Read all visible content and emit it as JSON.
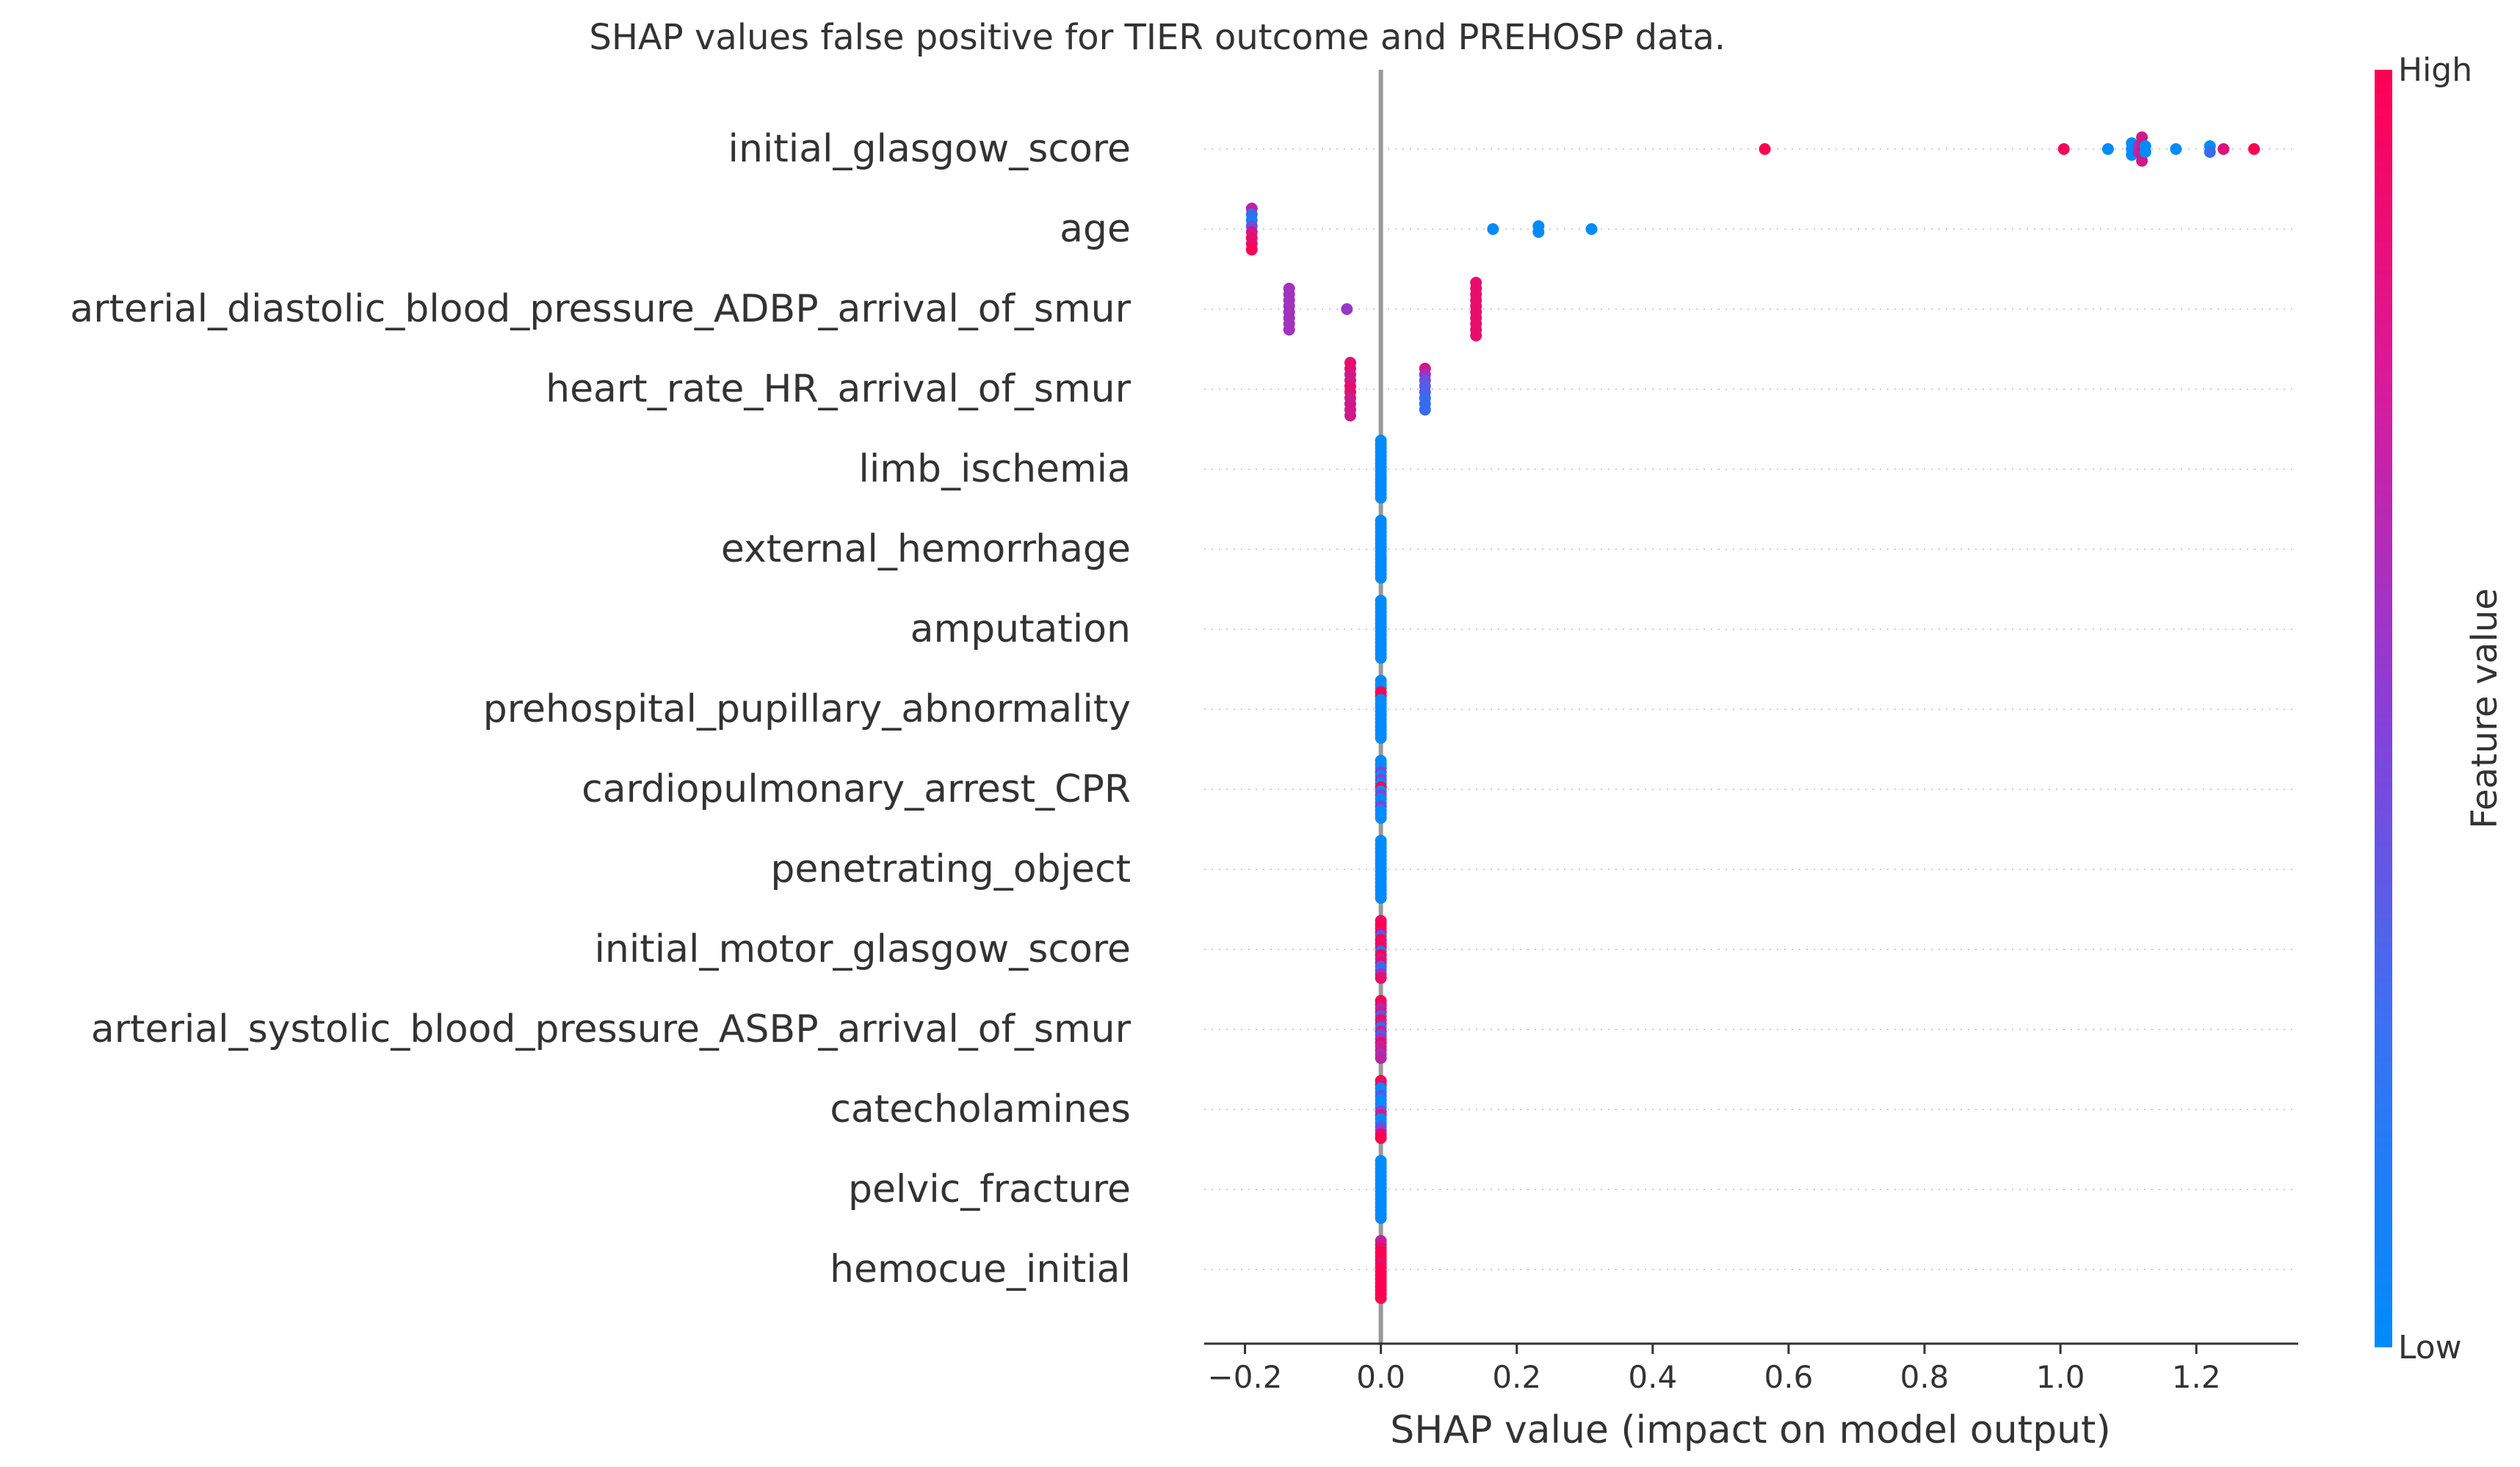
{
  "chart_data": {
    "type": "scatter",
    "title": "SHAP values false positive for TIER outcome and PREHOSP data.",
    "xlabel": "SHAP value (impact on model output)",
    "ylabel": "",
    "xlim": [
      -0.26,
      1.35
    ],
    "xticks": [
      -0.2,
      0.0,
      0.2,
      0.4,
      0.6,
      0.8,
      1.0,
      1.2
    ],
    "xtick_labels": [
      "−0.2",
      "0.0",
      "0.2",
      "0.4",
      "0.6",
      "0.8",
      "1.0",
      "1.2"
    ],
    "grid": false,
    "zero_line": true,
    "colorbar": {
      "label": "Feature value",
      "high_label": "High",
      "low_label": "Low",
      "low_color": "#008bfb",
      "high_color": "#ff0052"
    },
    "features": [
      {
        "name": "initial_glasgow_score",
        "points": [
          {
            "x": 0.565,
            "v": 1.0
          },
          {
            "x": 1.005,
            "v": 1.0
          },
          {
            "x": 1.07,
            "v": 0.0
          },
          {
            "x": 1.105,
            "v": 0.0
          },
          {
            "x": 1.105,
            "v": 0.0
          },
          {
            "x": 1.105,
            "v": 0.0
          },
          {
            "x": 1.115,
            "v": 0.5
          },
          {
            "x": 1.115,
            "v": 0.6
          },
          {
            "x": 1.12,
            "v": 0.8
          },
          {
            "x": 1.12,
            "v": 0.8
          },
          {
            "x": 1.12,
            "v": 0.8
          },
          {
            "x": 1.12,
            "v": 0.8
          },
          {
            "x": 1.12,
            "v": 0.8
          },
          {
            "x": 1.125,
            "v": 0.0
          },
          {
            "x": 1.125,
            "v": 0.0
          },
          {
            "x": 1.17,
            "v": 0.0
          },
          {
            "x": 1.22,
            "v": 0.0
          },
          {
            "x": 1.22,
            "v": 0.2
          },
          {
            "x": 1.24,
            "v": 0.85
          },
          {
            "x": 1.285,
            "v": 1.0
          }
        ]
      },
      {
        "name": "age",
        "points": [
          {
            "x": -0.19,
            "v": 0.7
          },
          {
            "x": -0.19,
            "v": 0.2
          },
          {
            "x": -0.19,
            "v": 0.1
          },
          {
            "x": -0.19,
            "v": 0.4
          },
          {
            "x": -0.19,
            "v": 0.8
          },
          {
            "x": -0.19,
            "v": 0.9
          },
          {
            "x": -0.19,
            "v": 0.9
          },
          {
            "x": -0.19,
            "v": 1.0
          },
          {
            "x": 0.165,
            "v": 0.0
          },
          {
            "x": 0.232,
            "v": 0.0
          },
          {
            "x": 0.232,
            "v": 0.0
          },
          {
            "x": 0.31,
            "v": 0.0
          }
        ]
      },
      {
        "name": "arterial_diastolic_blood_pressure_ADBP_arrival_of_smur",
        "points": [
          {
            "x": -0.135,
            "v": 0.6
          },
          {
            "x": -0.135,
            "v": 0.6
          },
          {
            "x": -0.135,
            "v": 0.6
          },
          {
            "x": -0.135,
            "v": 0.6
          },
          {
            "x": -0.135,
            "v": 0.6
          },
          {
            "x": -0.135,
            "v": 0.6
          },
          {
            "x": -0.135,
            "v": 0.6
          },
          {
            "x": -0.135,
            "v": 0.6
          },
          {
            "x": -0.05,
            "v": 0.55
          },
          {
            "x": 0.14,
            "v": 0.9
          },
          {
            "x": 0.14,
            "v": 0.9
          },
          {
            "x": 0.14,
            "v": 0.9
          },
          {
            "x": 0.14,
            "v": 0.9
          },
          {
            "x": 0.14,
            "v": 0.9
          },
          {
            "x": 0.14,
            "v": 0.9
          },
          {
            "x": 0.14,
            "v": 0.9
          },
          {
            "x": 0.14,
            "v": 0.9
          },
          {
            "x": 0.14,
            "v": 0.9
          },
          {
            "x": 0.14,
            "v": 0.9
          }
        ]
      },
      {
        "name": "heart_rate_HR_arrival_of_smur",
        "points": [
          {
            "x": -0.045,
            "v": 0.9
          },
          {
            "x": -0.045,
            "v": 0.9
          },
          {
            "x": -0.045,
            "v": 0.8
          },
          {
            "x": -0.045,
            "v": 0.8
          },
          {
            "x": -0.045,
            "v": 0.9
          },
          {
            "x": -0.045,
            "v": 0.9
          },
          {
            "x": -0.045,
            "v": 0.8
          },
          {
            "x": -0.045,
            "v": 0.8
          },
          {
            "x": -0.045,
            "v": 0.8
          },
          {
            "x": -0.045,
            "v": 0.8
          },
          {
            "x": 0.065,
            "v": 0.8
          },
          {
            "x": 0.065,
            "v": 0.6
          },
          {
            "x": 0.065,
            "v": 0.4
          },
          {
            "x": 0.065,
            "v": 0.3
          },
          {
            "x": 0.065,
            "v": 0.3
          },
          {
            "x": 0.065,
            "v": 0.2
          },
          {
            "x": 0.065,
            "v": 0.2
          },
          {
            "x": 0.065,
            "v": 0.2
          }
        ]
      },
      {
        "name": "limb_ischemia",
        "column": {
          "x": 0.0,
          "count": 16,
          "values": [
            0
          ]
        }
      },
      {
        "name": "external_hemorrhage",
        "column": {
          "x": 0.0,
          "count": 16,
          "values": [
            0
          ]
        }
      },
      {
        "name": "amputation",
        "column": {
          "x": 0.0,
          "count": 16,
          "values": [
            0
          ]
        }
      },
      {
        "name": "prehospital_pupillary_abnormality",
        "column": {
          "x": 0.0,
          "count": 16,
          "values": [
            0,
            0,
            0,
            1,
            1,
            0,
            0,
            0,
            0,
            0,
            0,
            0,
            0,
            0,
            0,
            0
          ]
        }
      },
      {
        "name": "cardiopulmonary_arrest_CPR",
        "column": {
          "x": 0.0,
          "count": 16,
          "values": [
            0,
            0,
            0,
            0.5,
            0,
            0.5,
            0,
            1,
            0,
            0.5,
            0,
            0,
            0.5,
            0,
            0,
            0
          ]
        }
      },
      {
        "name": "penetrating_object",
        "column": {
          "x": 0.0,
          "count": 16,
          "values": [
            0
          ]
        }
      },
      {
        "name": "initial_motor_glasgow_score",
        "column": {
          "x": 0.0,
          "count": 16,
          "values": [
            0.9,
            1,
            1,
            0.9,
            0.3,
            1,
            0.9,
            1,
            0.2,
            1,
            0.8,
            0.9,
            0.3,
            0.2,
            0.6,
            0.9
          ]
        }
      },
      {
        "name": "arterial_systolic_blood_pressure_ASBP_arrival_of_smur",
        "column": {
          "x": 0.0,
          "count": 16,
          "values": [
            1,
            0.9,
            0.7,
            0.8,
            0.3,
            0.9,
            0.8,
            0.2,
            0.8,
            0.3,
            0.6,
            0.9,
            0.7,
            0.8,
            0.6,
            0.7
          ]
        }
      },
      {
        "name": "catecholamines",
        "column": {
          "x": 0.0,
          "count": 16,
          "values": [
            1,
            0.9,
            0,
            0,
            0.4,
            0,
            0,
            0,
            0.5,
            0.8,
            0,
            0,
            0.3,
            0.5,
            0.9,
            1
          ]
        }
      },
      {
        "name": "pelvic_fracture",
        "column": {
          "x": 0.0,
          "count": 16,
          "values": [
            0
          ]
        }
      },
      {
        "name": "hemocue_initial",
        "column": {
          "x": 0.0,
          "count": 16,
          "values": [
            0.7,
            0.8,
            0.9,
            1,
            1,
            1,
            0.9,
            1,
            1,
            1,
            1,
            1,
            1,
            1,
            1,
            1
          ]
        }
      }
    ]
  }
}
